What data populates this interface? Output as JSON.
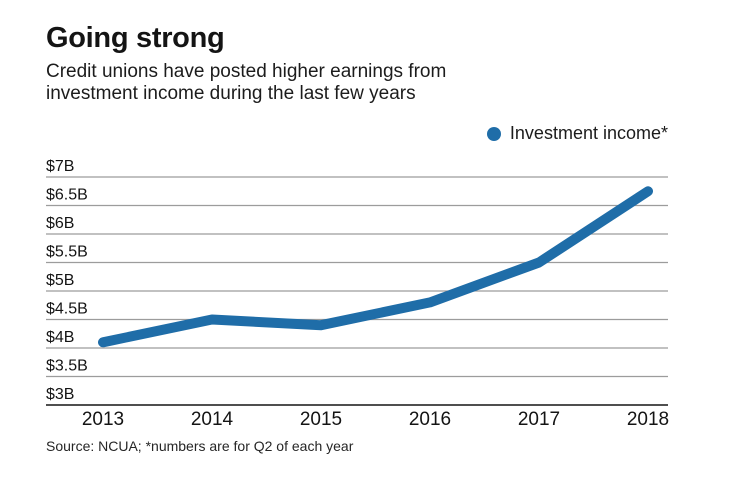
{
  "header": {
    "title": "Going strong",
    "subtitle_lines": [
      "Credit unions have posted higher earnings from",
      "investment income during the last few years"
    ]
  },
  "legend": {
    "label": "Investment income*",
    "marker_color": "#1f6da8"
  },
  "footer": {
    "source": "Source: NCUA; *numbers are for Q2 of each year"
  },
  "colors": {
    "line": "#1f6da8",
    "gridline": "#9c9c9c",
    "axis_line": "#4f4f4f",
    "text": "#141414"
  },
  "chart_data": {
    "type": "line",
    "title": "Going strong",
    "subtitle": "Credit unions have posted higher earnings from investment income during the last few years",
    "categories": [
      "2013",
      "2014",
      "2015",
      "2016",
      "2017",
      "2018"
    ],
    "series": [
      {
        "name": "Investment income*",
        "color": "#1f6da8",
        "values": [
          4.1,
          4.5,
          4.4,
          4.8,
          5.5,
          6.75
        ]
      }
    ],
    "value_unit": "$B",
    "ylim": [
      3,
      7
    ],
    "y_ticks": [
      {
        "value": 7,
        "label": "$7B"
      },
      {
        "value": 6.5,
        "label": "$6.5B"
      },
      {
        "value": 6,
        "label": "$6B"
      },
      {
        "value": 5.5,
        "label": "$5.5B"
      },
      {
        "value": 5,
        "label": "$5B"
      },
      {
        "value": 4.5,
        "label": "$4.5B"
      },
      {
        "value": 4,
        "label": "$4B"
      },
      {
        "value": 3.5,
        "label": "$3.5B"
      },
      {
        "value": 3,
        "label": "$3B"
      }
    ],
    "xlabel": "",
    "ylabel": "",
    "grid": "horizontal",
    "legend_position": "top-right"
  }
}
